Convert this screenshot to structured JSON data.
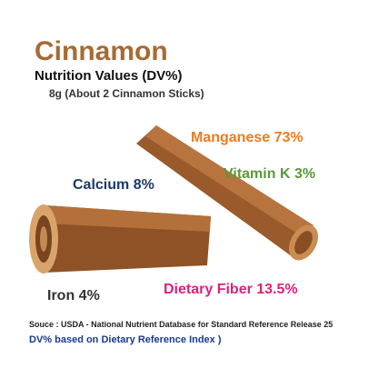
{
  "header": {
    "title": "Cinnamon",
    "subtitle": "Nutrition Values (DV%)",
    "serving": "8g (About 2 Cinnamon Sticks)"
  },
  "nutrients": [
    {
      "label": "Manganese 73%"
    },
    {
      "label": "Vitamin K 3%"
    },
    {
      "label": "Calcium 8%"
    },
    {
      "label": "Iron 4%"
    },
    {
      "label": "Dietary Fiber 13.5%"
    }
  ],
  "footer": {
    "source": "Souce : USDA -  National Nutrient Database for Standard Reference Release 25",
    "note": "DV% based on Dietary Reference Index )"
  }
}
